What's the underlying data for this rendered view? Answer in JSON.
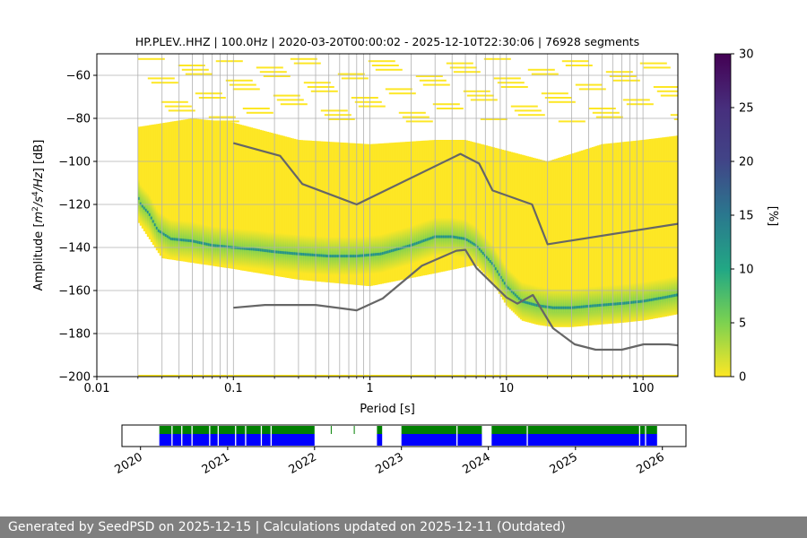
{
  "chart_data": [
    {
      "type": "heatmap",
      "title": "HP.PLEV..HHZ | 100.0Hz | 2020-03-20T00:00:02 - 2025-12-10T22:30:06 | 76928 segments",
      "xlabel": "Period [s]",
      "ylabel": "Amplitude [m²/s⁴/Hz] [dB]",
      "xscale": "log",
      "xlim": [
        0.01,
        180
      ],
      "ylim": [
        -200,
        -50
      ],
      "x_tick_labels": [
        "0.01",
        "0.1",
        "1",
        "10",
        "100"
      ],
      "y_ticks": [
        -200,
        -180,
        -160,
        -140,
        -120,
        -100,
        -80,
        -60
      ],
      "grid": true,
      "colorbar": {
        "label": "[%]",
        "ticks": [
          0,
          5,
          10,
          15,
          20,
          25,
          30
        ],
        "range": [
          0,
          30
        ],
        "colormap": "viridis"
      },
      "mode_curve": {
        "period": [
          0.02,
          0.021,
          0.024,
          0.028,
          0.035,
          0.05,
          0.07,
          0.1,
          0.15,
          0.2,
          0.3,
          0.5,
          0.8,
          1.2,
          2,
          3,
          4,
          5,
          6,
          8,
          10,
          13,
          17,
          22,
          30,
          45,
          70,
          100,
          150,
          180
        ],
        "amplitude": [
          -116,
          -120,
          -124,
          -132,
          -136,
          -137,
          -139,
          -140,
          -141,
          -142,
          -143,
          -144,
          -144,
          -143,
          -139,
          -135,
          -135,
          -136,
          -139,
          -148,
          -158,
          -165,
          -167,
          -168,
          -168,
          -167,
          -166,
          -165,
          -163,
          -162
        ]
      },
      "noise_models": [
        {
          "name": "",
          "color": "#666666",
          "period": [
            0.1,
            0.22,
            0.32,
            0.8,
            4.6,
            6.3,
            7.9,
            15.4,
            20,
            180
          ],
          "amplitude": [
            -91.5,
            -97.4,
            -110.5,
            -120,
            -96.5,
            -101,
            -113.5,
            -120,
            -138.5,
            -129
          ]
        },
        {
          "name": "",
          "color": "#666666",
          "period": [
            0.1,
            0.17,
            0.4,
            0.8,
            1.24,
            2.4,
            4.3,
            5.0,
            6.0,
            10.0,
            12.0,
            15.6,
            21.9,
            31.6,
            45.0,
            70.0,
            101.0,
            154.0,
            180
          ],
          "amplitude": [
            -168,
            -166.7,
            -166.7,
            -169.2,
            -163.7,
            -148.5,
            -141.5,
            -141.1,
            -149.4,
            -163.2,
            -166.1,
            -162.1,
            -177.5,
            -185,
            -187.5,
            -187.5,
            -185,
            -185,
            -185.5
          ]
        }
      ]
    },
    {
      "type": "timeline",
      "x_tick_labels": [
        "2020",
        "2021",
        "2022",
        "2023",
        "2024",
        "2025",
        "2026"
      ],
      "xlim": [
        "2019-10-15",
        "2026-04-10"
      ],
      "data_start": "2020-03-20",
      "data_end": "2025-12-10",
      "series": [
        {
          "color": "#008000",
          "segments": [
            [
              "2020-03-20",
              "2022-01-01"
            ],
            [
              "2022-03-10",
              "2022-03-12"
            ],
            [
              "2022-06-15",
              "2022-06-17"
            ],
            [
              "2022-09-20",
              "2022-10-12"
            ],
            [
              "2023-01-01",
              "2023-12-05"
            ],
            [
              "2024-01-15",
              "2025-12-10"
            ]
          ]
        },
        {
          "color": "#0000ff",
          "segments": [
            [
              "2020-03-20",
              "2022-01-01"
            ],
            [
              "2022-09-20",
              "2022-10-12"
            ],
            [
              "2023-01-01",
              "2023-12-05"
            ],
            [
              "2024-01-15",
              "2025-12-10"
            ]
          ]
        }
      ]
    }
  ],
  "footer": {
    "text": "Generated by SeedPSD on 2025-12-15 | Calculations updated on 2025-12-11 (Outdated)"
  }
}
